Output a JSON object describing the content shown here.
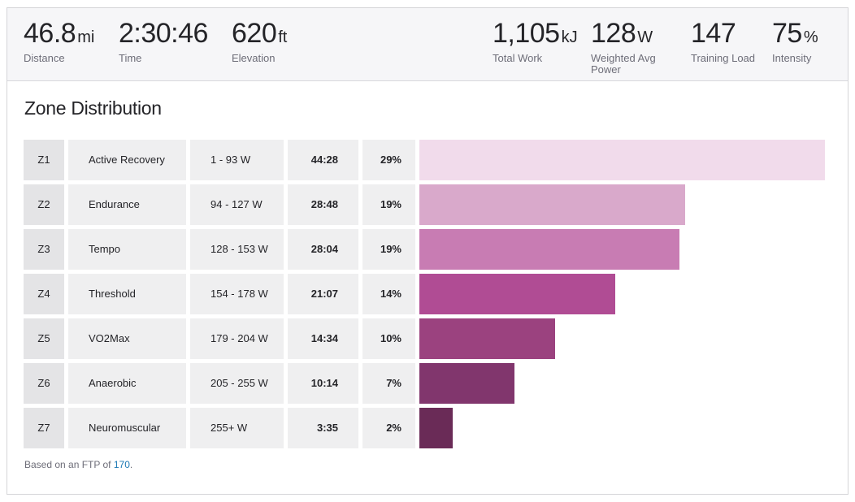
{
  "stats": {
    "left": [
      {
        "value": "46.8",
        "unit": "mi",
        "label": "Distance"
      },
      {
        "value": "2:30:46",
        "unit": "",
        "label": "Time"
      },
      {
        "value": "620",
        "unit": "ft",
        "label": "Elevation"
      }
    ],
    "right": [
      {
        "value": "1,105",
        "unit": "kJ",
        "label": "Total Work"
      },
      {
        "value": "128",
        "unit": "W",
        "label": "Weighted Avg Power"
      },
      {
        "value": "147",
        "unit": "",
        "label": "Training Load"
      },
      {
        "value": "75",
        "unit": "%",
        "label": "Intensity"
      }
    ]
  },
  "zone_distribution": {
    "title": "Zone Distribution",
    "zones": [
      {
        "zone": "Z1",
        "name": "Active Recovery",
        "range": "1 - 93 W",
        "time": "44:28",
        "percent": "29%",
        "fraction": 0.29,
        "color": "#f1dbeb"
      },
      {
        "zone": "Z2",
        "name": "Endurance",
        "range": "94 - 127 W",
        "time": "28:48",
        "percent": "19%",
        "fraction": 0.19,
        "color": "#d9a9cb"
      },
      {
        "zone": "Z3",
        "name": "Tempo",
        "range": "128 - 153 W",
        "time": "28:04",
        "percent": "19%",
        "fraction": 0.186,
        "color": "#c87cb3"
      },
      {
        "zone": "Z4",
        "name": "Threshold",
        "range": "154 - 178 W",
        "time": "21:07",
        "percent": "14%",
        "fraction": 0.14,
        "color": "#b04c94"
      },
      {
        "zone": "Z5",
        "name": "VO2Max",
        "range": "179 - 204 W",
        "time": "14:34",
        "percent": "10%",
        "fraction": 0.097,
        "color": "#9b427f"
      },
      {
        "zone": "Z6",
        "name": "Anaerobic",
        "range": "205 - 255 W",
        "time": "10:14",
        "percent": "7%",
        "fraction": 0.068,
        "color": "#81366d"
      },
      {
        "zone": "Z7",
        "name": "Neuromuscular",
        "range": "255+ W",
        "time": "3:35",
        "percent": "2%",
        "fraction": 0.024,
        "color": "#6a2b57"
      }
    ]
  },
  "footnote": {
    "text": "Based on an FTP of",
    "ftp": "170",
    "suffix": "."
  }
}
